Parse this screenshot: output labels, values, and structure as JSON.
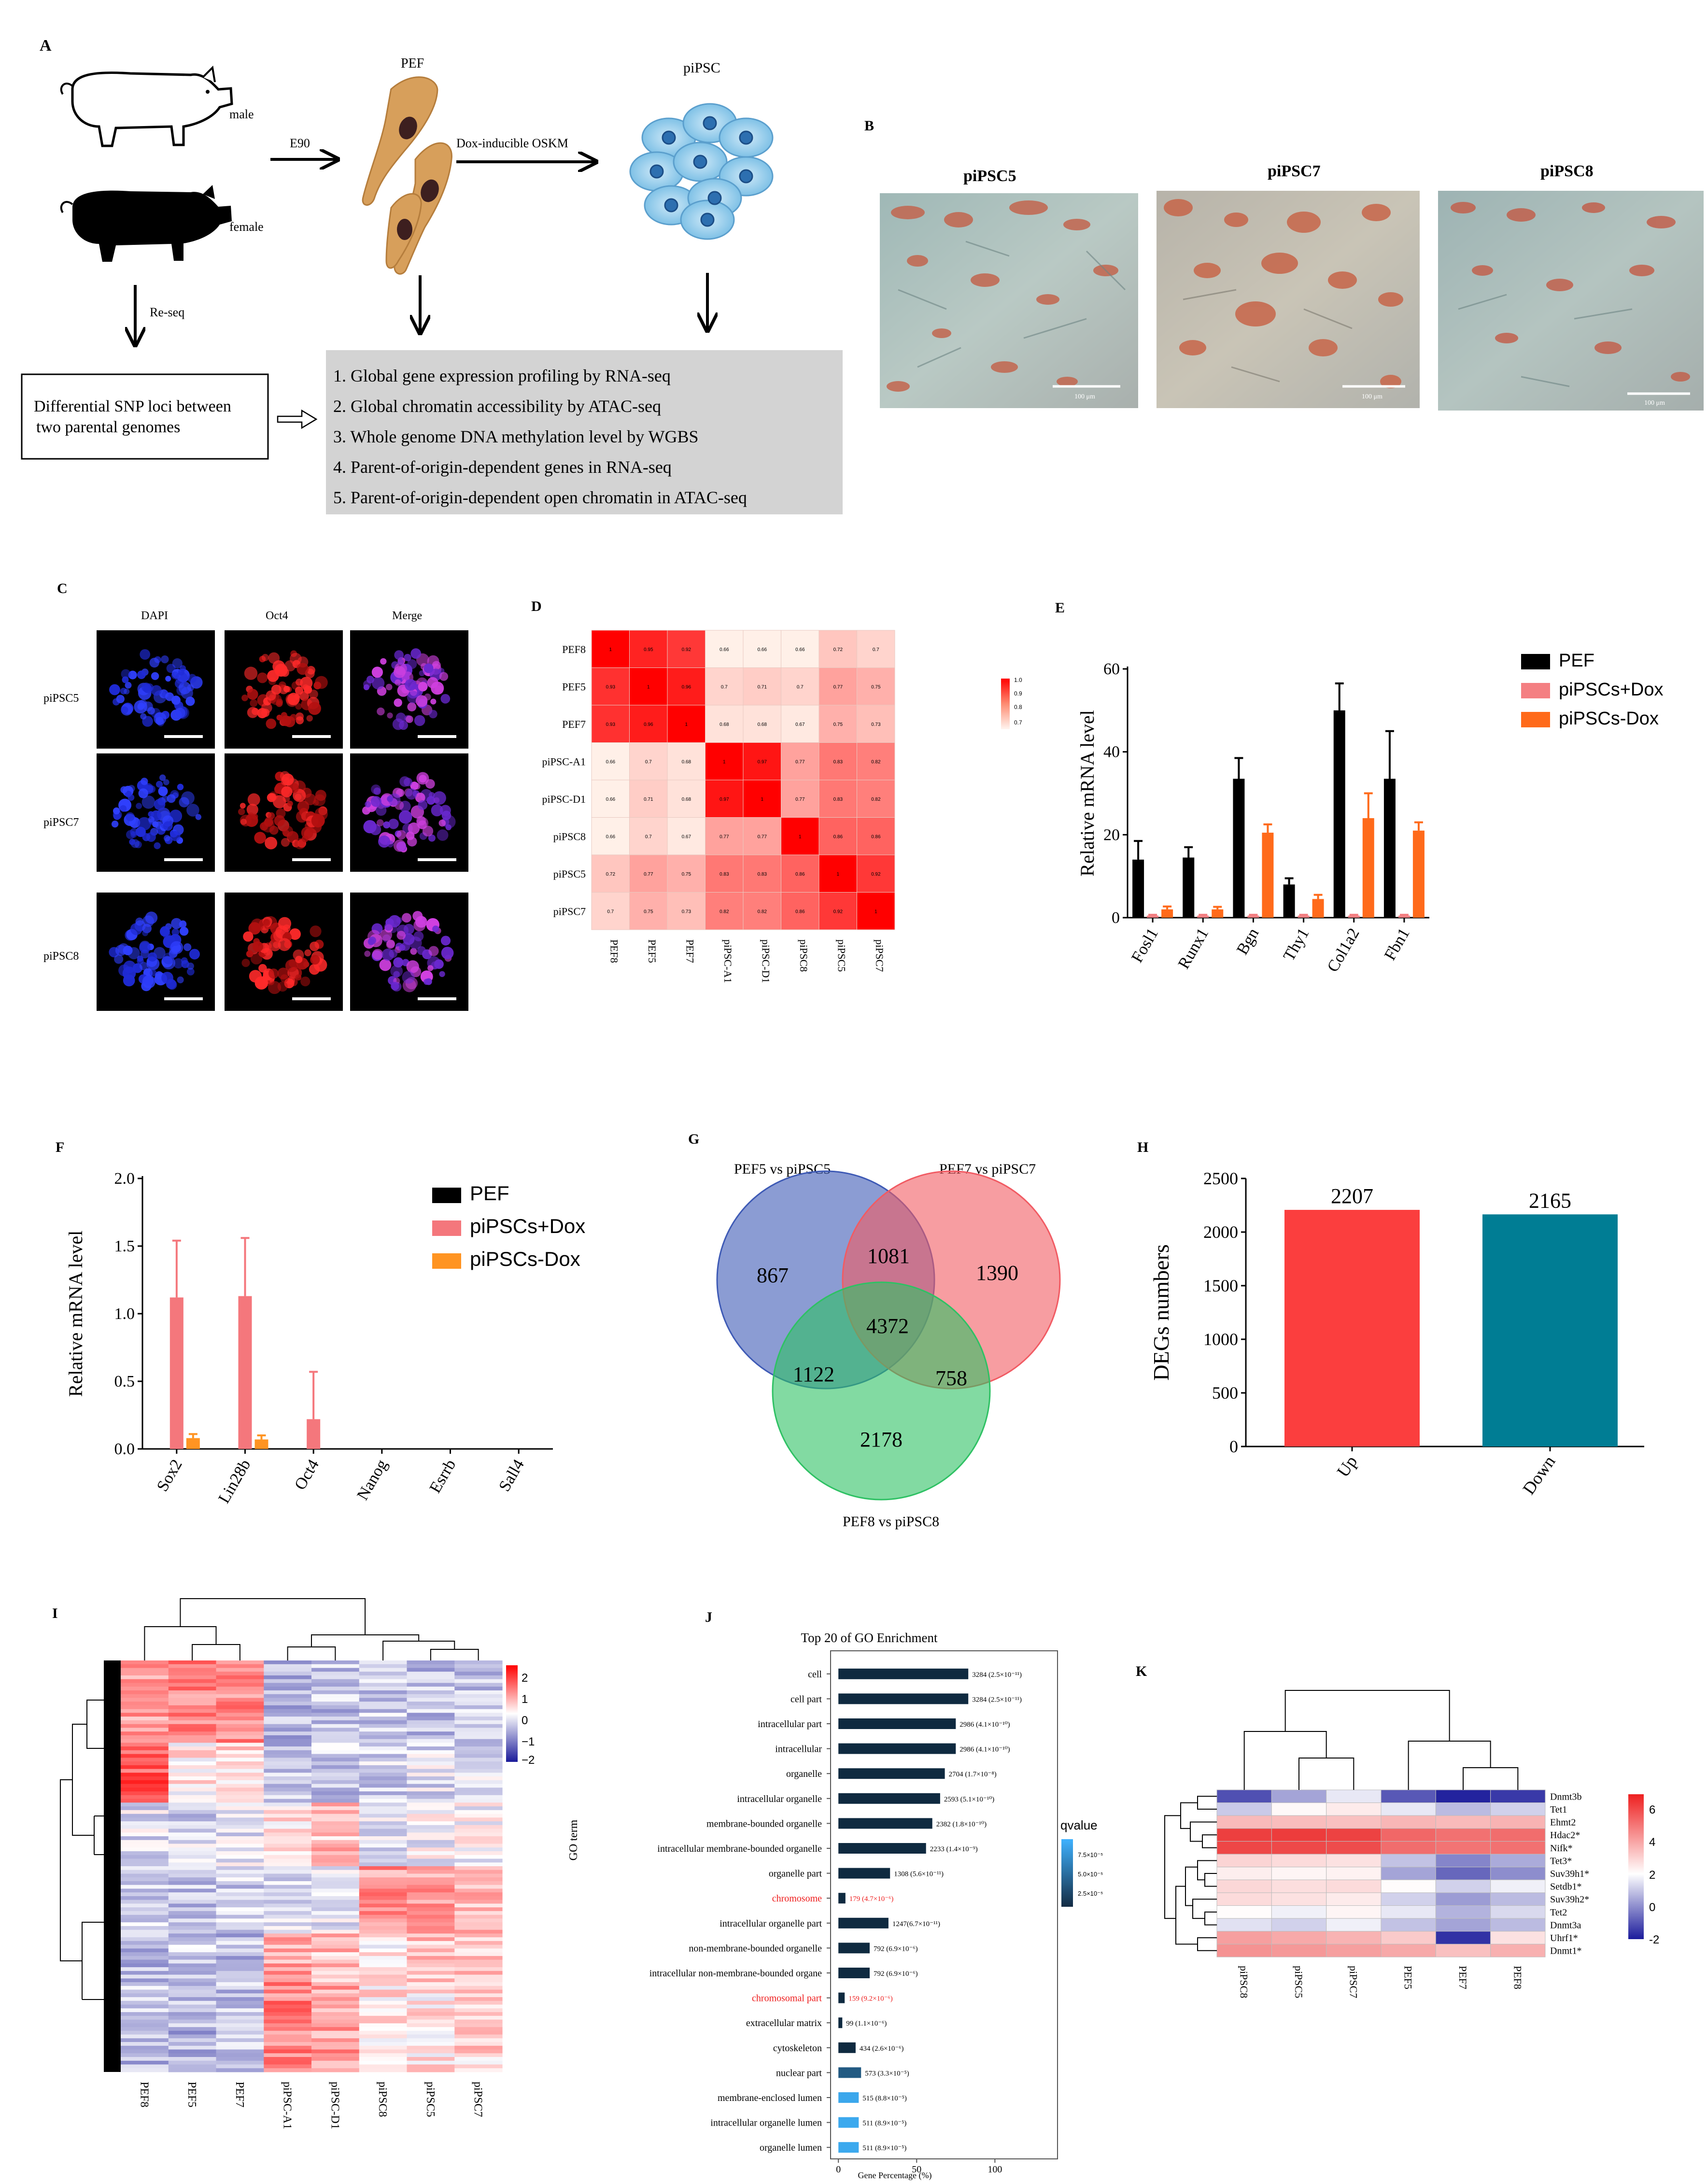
{
  "panels": {
    "A": {
      "letter": "A",
      "pef_label": "PEF",
      "ipsc_label": "piPSC",
      "male_label": "male",
      "female_label": "female",
      "e90_label": "E90",
      "dox_label": "Dox-inducible OSKM",
      "reseq_label": "Re-seq",
      "snp_box_line1": "Differential SNP loci between",
      "snp_box_line2": "two parental genomes",
      "methods": [
        "1. Global gene expression profiling by RNA-seq",
        "2. Global chromatin accessibility by ATAC-seq",
        "3. Whole genome DNA methylation level by WGBS",
        "4. Parent-of-origin-dependent genes in RNA-seq",
        "5. Parent-of-origin-dependent open chromatin in ATAC-seq"
      ]
    },
    "B": {
      "letter": "B",
      "images": [
        {
          "label": "piPSC5",
          "scale": "100 μm"
        },
        {
          "label": "piPSC7",
          "scale": "100 μm"
        },
        {
          "label": "piPSC8",
          "scale": "100 μm"
        }
      ]
    },
    "C": {
      "letter": "C",
      "columns": [
        "DAPI",
        "Oct4",
        "Merge"
      ],
      "rows": [
        "piPSC5",
        "piPSC7",
        "piPSC8"
      ]
    },
    "D": {
      "letter": "D",
      "labels": [
        "PEF8",
        "PEF5",
        "PEF7",
        "piPSC-A1",
        "piPSC-D1",
        "piPSC8",
        "piPSC5",
        "piPSC7"
      ],
      "values": [
        [
          1,
          0.95,
          0.92,
          0.66,
          0.66,
          0.66,
          0.72,
          0.7
        ],
        [
          0.93,
          1,
          0.96,
          0.7,
          0.71,
          0.7,
          0.77,
          0.75
        ],
        [
          0.93,
          0.96,
          1,
          0.68,
          0.68,
          0.67,
          0.75,
          0.73
        ],
        [
          0.66,
          0.7,
          0.68,
          1,
          0.97,
          0.77,
          0.83,
          0.82
        ],
        [
          0.66,
          0.71,
          0.68,
          0.97,
          1,
          0.77,
          0.83,
          0.82
        ],
        [
          0.66,
          0.7,
          0.67,
          0.77,
          0.77,
          1,
          0.86,
          0.86
        ],
        [
          0.72,
          0.77,
          0.75,
          0.83,
          0.83,
          0.86,
          1,
          0.92
        ],
        [
          0.7,
          0.75,
          0.73,
          0.82,
          0.82,
          0.86,
          0.92,
          1
        ]
      ],
      "legend_ticks": [
        "1.0",
        "0.9",
        "0.8",
        "0.7"
      ]
    },
    "E": {
      "letter": "E",
      "ylabel": "Relative mRNA level",
      "categories": [
        "Fosl1",
        "Runx1",
        "Bgn",
        "Thy1",
        "Col1a2",
        "Fbn1"
      ],
      "yticks": [
        "0",
        "20",
        "40",
        "60"
      ],
      "legend": [
        "PEF",
        "piPSCs+Dox",
        "piPSCs-Dox"
      ]
    },
    "F": {
      "letter": "F",
      "ylabel": "Relative mRNA level",
      "categories": [
        "Sox2",
        "Lin28b",
        "Oct4",
        "Nanog",
        "Esrrb",
        "Sall4"
      ],
      "yticks": [
        "0.0",
        "0.5",
        "1.0",
        "1.5",
        "2.0"
      ],
      "legend": [
        "PEF",
        "piPSCs+Dox",
        "piPSCs-Dox"
      ]
    },
    "G": {
      "letter": "G",
      "set_labels": [
        "PEF5 vs piPSC5",
        "PEF7 vs piPSC7",
        "PEF8 vs piPSC8"
      ],
      "counts": {
        "a_only": "867",
        "b_only": "1390",
        "c_only": "2178",
        "ab": "1081",
        "ac": "1122",
        "bc": "758",
        "abc": "4372"
      }
    },
    "H": {
      "letter": "H",
      "ylabel": "DEGs numbers",
      "yticks": [
        "0",
        "500",
        "1000",
        "1500",
        "2000",
        "2500"
      ]
    },
    "I": {
      "letter": "I",
      "columns": [
        "PEF8",
        "PEF5",
        "PEF7",
        "piPSC-A1",
        "piPSC-D1",
        "piPSC8",
        "piPSC5",
        "piPSC7"
      ],
      "legend_ticks": [
        "2",
        "1",
        "0",
        "−1",
        "−2"
      ]
    },
    "J": {
      "letter": "J",
      "title": "Top 20 of GO Enrichment",
      "ylabel": "GO term",
      "xlabel": "Gene Percentage (%)",
      "xticks": [
        "0",
        "50",
        "100"
      ],
      "legend_title": "qvalue",
      "legend_ticks": [
        "7.5×10⁻⁵",
        "5.0×10⁻⁵",
        "2.5×10⁻⁵"
      ],
      "terms": [
        {
          "name": "cell",
          "label": "3284 (2.5×10⁻¹¹)"
        },
        {
          "name": "cell part",
          "label": "3284 (2.5×10⁻¹¹)"
        },
        {
          "name": "intracellular part",
          "label": "2986 (4.1×10⁻¹⁰)"
        },
        {
          "name": "intracellular",
          "label": "2986 (4.1×10⁻¹⁰)"
        },
        {
          "name": "organelle",
          "label": "2704 (1.7×10⁻⁸)"
        },
        {
          "name": "intracellular organelle",
          "label": "2593 (5.1×10⁻¹⁰)"
        },
        {
          "name": "membrane-bounded organelle",
          "label": "2382 (1.8×10⁻¹⁰)"
        },
        {
          "name": "intracellular membrane-bounded organelle",
          "label": "2233 (1.4×10⁻⁹)"
        },
        {
          "name": "organelle part",
          "label": "1308 (5.6×10⁻¹¹)"
        },
        {
          "name": "chromosome",
          "label": "179 (4.7×10⁻⁶)"
        },
        {
          "name": "intracellular organelle part",
          "label": "1247(6.7×10⁻¹¹)"
        },
        {
          "name": "non-membrane-bounded organelle",
          "label": "792 (6.9×10⁻⁶)"
        },
        {
          "name": "intracellular non-membrane-bounded organe",
          "label": "792 (6.9×10⁻⁶)"
        },
        {
          "name": "chromosomal part",
          "label": "159 (9.2×10⁻⁶)"
        },
        {
          "name": "extracellular matrix",
          "label": "99 (1.1×10⁻⁶)"
        },
        {
          "name": "cytoskeleton",
          "label": "434 (2.6×10⁻⁶)"
        },
        {
          "name": "nuclear part",
          "label": "573 (3.3×10⁻⁵)"
        },
        {
          "name": "membrane-enclosed lumen",
          "label": "515 (8.8×10⁻⁵)"
        },
        {
          "name": "intracellular organelle lumen",
          "label": "511 (8.9×10⁻⁵)"
        },
        {
          "name": "organelle lumen",
          "label": "511 (8.9×10⁻⁵)"
        }
      ]
    },
    "K": {
      "letter": "K",
      "columns": [
        "piPSC8",
        "piPSC5",
        "piPSC7",
        "PEF5",
        "PEF7",
        "PEF8"
      ],
      "genes": [
        "Dnmt3b",
        "Tet1",
        "Ehmt2",
        "Hdac2*",
        "Nifk*",
        "Tet3*",
        "Suv39h1*",
        "Setdb1*",
        "Suv39h2*",
        "Tet2",
        "Dnmt3a",
        "Uhrf1*",
        "Dnmt1*"
      ],
      "values": [
        [
          -2.3,
          -1.2,
          -0.3,
          -2.2,
          -2.9,
          -2.6
        ],
        [
          -0.7,
          0.2,
          0.6,
          -0.3,
          -0.9,
          -0.6
        ],
        [
          2.1,
          2.0,
          1.9,
          2.2,
          2.1,
          2.3
        ],
        [
          5.8,
          5.9,
          5.7,
          4.6,
          4.3,
          4.4
        ],
        [
          5.6,
          5.5,
          5.4,
          4.4,
          4.2,
          4.3
        ],
        [
          1.3,
          1.1,
          0.9,
          -0.8,
          -1.6,
          -1.1
        ],
        [
          0.5,
          0.3,
          0.4,
          -1.2,
          -2.0,
          -1.5
        ],
        [
          1.2,
          1.0,
          1.1,
          0.1,
          -0.6,
          -0.2
        ],
        [
          1.1,
          0.9,
          0.6,
          -0.6,
          -1.3,
          -0.9
        ],
        [
          0.1,
          -0.2,
          0.3,
          -0.3,
          -1.0,
          -0.5
        ],
        [
          -0.4,
          -0.6,
          -0.2,
          -0.8,
          -1.2,
          -0.9
        ],
        [
          2.9,
          2.6,
          2.3,
          1.6,
          -2.7,
          0.9
        ],
        [
          3.3,
          3.1,
          2.9,
          2.6,
          1.9,
          2.4
        ]
      ],
      "legend_ticks": [
        "6",
        "4",
        "2",
        "0",
        "-2"
      ]
    }
  },
  "chart_data": [
    {
      "type": "bar",
      "panel": "E",
      "ylabel": "Relative mRNA level",
      "ylim": [
        0,
        60
      ],
      "categories": [
        "Fosl1",
        "Runx1",
        "Bgn",
        "Thy1",
        "Col1a2",
        "Fbn1"
      ],
      "series": [
        {
          "name": "PEF",
          "color": "#000000",
          "values": [
            14,
            14.5,
            33.5,
            8,
            50,
            33.5
          ],
          "errors": [
            4.5,
            2.5,
            5,
            1.5,
            6.5,
            11.5
          ]
        },
        {
          "name": "piPSCs+Dox",
          "color": "#f47f82",
          "values": [
            0.5,
            0.5,
            0.5,
            0.5,
            0.5,
            0.5
          ],
          "errors": [
            0.2,
            0.2,
            0.2,
            0.2,
            0.2,
            0.2
          ]
        },
        {
          "name": "piPSCs-Dox",
          "color": "#ff6a1a",
          "values": [
            2,
            2,
            20.5,
            4.5,
            24,
            21
          ],
          "errors": [
            0.7,
            0.6,
            2,
            1,
            6,
            2
          ]
        }
      ]
    },
    {
      "type": "bar",
      "panel": "F",
      "ylabel": "Relative mRNA level",
      "ylim": [
        0,
        2.0
      ],
      "categories": [
        "Sox2",
        "Lin28b",
        "Oct4",
        "Nanog",
        "Esrrb",
        "Sall4"
      ],
      "series": [
        {
          "name": "PEF",
          "color": "#000000",
          "values": [
            0,
            0,
            0,
            0,
            0,
            0
          ],
          "errors": [
            0,
            0,
            0,
            0,
            0,
            0
          ]
        },
        {
          "name": "piPSCs+Dox",
          "color": "#f4777c",
          "values": [
            1.12,
            1.13,
            0.22,
            0,
            0,
            0
          ],
          "errors": [
            0.42,
            0.43,
            0.35,
            0,
            0,
            0
          ]
        },
        {
          "name": "piPSCs-Dox",
          "color": "#ff9422",
          "values": [
            0.08,
            0.07,
            0,
            0,
            0,
            0
          ],
          "errors": [
            0.03,
            0.03,
            0,
            0,
            0,
            0
          ]
        }
      ]
    },
    {
      "type": "bar",
      "panel": "H",
      "ylabel": "DEGs numbers",
      "ylim": [
        0,
        2500
      ],
      "categories": [
        "Up",
        "Down"
      ],
      "values": [
        2207,
        2165
      ],
      "value_labels": [
        "2207",
        "2165"
      ],
      "colors": [
        "#fb3e3e",
        "#007d94"
      ]
    },
    {
      "type": "bar",
      "panel": "J",
      "title": "Top 20 of GO Enrichment",
      "xlabel": "Gene Percentage (%)",
      "ylabel": "GO term",
      "xlim": [
        -5,
        140
      ],
      "values": [
        83,
        83,
        75,
        75,
        68,
        65,
        60,
        56,
        33,
        4.5,
        32,
        20,
        20,
        4,
        2.5,
        11,
        14.5,
        13,
        13,
        13
      ],
      "qvalues": [
        0,
        0,
        0,
        0,
        0,
        0,
        0,
        0,
        0,
        0,
        0,
        0,
        0,
        0,
        0,
        0,
        3.3e-05,
        8.8e-05,
        8.9e-05,
        8.9e-05
      ]
    }
  ]
}
